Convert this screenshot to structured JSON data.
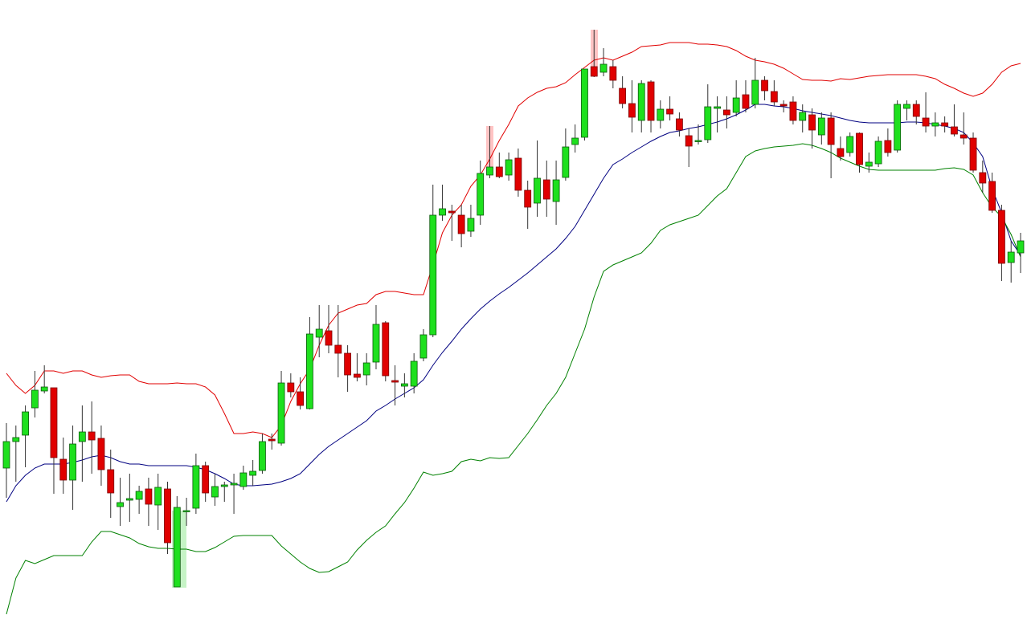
{
  "chart_data": {
    "type": "candlestick",
    "ylim": [
      0,
      771
    ],
    "up_color": "#1ee01e",
    "down_color": "#e00000",
    "open": [
      188,
      221,
      229,
      263,
      284,
      288,
      199,
      173,
      221,
      233,
      225,
      186,
      140,
      148,
      149,
      162,
      142,
      162,
      40,
      134,
      138,
      191,
      152,
      165,
      167,
      165,
      179,
      185,
      224,
      219,
      294,
      283,
      262,
      351,
      359,
      341,
      331,
      305,
      304,
      320,
      369,
      297,
      290,
      290,
      325,
      354,
      503,
      508,
      503,
      483,
      503,
      553,
      563,
      553,
      574,
      534,
      518,
      547,
      520,
      550,
      591,
      600,
      688,
      681,
      688,
      661,
      642,
      621,
      669,
      621,
      635,
      623,
      602,
      595,
      597,
      636,
      634,
      631,
      653,
      641,
      671,
      657,
      641,
      644,
      621,
      628,
      603,
      624,
      586,
      581,
      605,
      564,
      567,
      596,
      584,
      636,
      641,
      624,
      614,
      618,
      613,
      603,
      599,
      556,
      545,
      509,
      444,
      456
    ],
    "high": [
      244,
      241,
      266,
      309,
      316,
      288,
      226,
      241,
      266,
      271,
      241,
      211,
      176,
      181,
      166,
      176,
      181,
      171,
      153,
      151,
      206,
      196,
      181,
      171,
      181,
      191,
      198,
      231,
      231,
      309,
      306,
      301,
      376,
      391,
      391,
      391,
      341,
      331,
      331,
      391,
      371,
      316,
      306,
      331,
      361,
      541,
      541,
      516,
      516,
      516,
      571,
      614,
      581,
      581,
      586,
      546,
      596,
      571,
      571,
      611,
      616,
      685,
      734,
      711,
      696,
      676,
      671,
      671,
      671,
      646,
      651,
      631,
      611,
      616,
      666,
      651,
      651,
      671,
      671,
      699,
      676,
      671,
      646,
      651,
      641,
      636,
      631,
      631,
      601,
      606,
      606,
      581,
      601,
      611,
      646,
      646,
      646,
      656,
      631,
      626,
      641,
      631,
      606,
      571,
      556,
      516,
      471,
      481
    ],
    "low": [
      151,
      171,
      189,
      251,
      281,
      156,
      156,
      136,
      171,
      181,
      166,
      126,
      116,
      121,
      131,
      116,
      111,
      81,
      40,
      116,
      131,
      146,
      141,
      146,
      131,
      161,
      166,
      181,
      211,
      216,
      276,
      261,
      261,
      326,
      331,
      301,
      283,
      296,
      291,
      311,
      296,
      266,
      276,
      281,
      321,
      351,
      496,
      471,
      463,
      476,
      491,
      549,
      549,
      546,
      526,
      486,
      501,
      501,
      491,
      546,
      581,
      596,
      675,
      676,
      661,
      636,
      606,
      606,
      606,
      611,
      621,
      601,
      563,
      591,
      593,
      606,
      611,
      626,
      631,
      636,
      646,
      639,
      631,
      616,
      606,
      586,
      591,
      549,
      571,
      576,
      556,
      556,
      563,
      576,
      581,
      621,
      616,
      606,
      601,
      606,
      601,
      591,
      556,
      531,
      506,
      421,
      419,
      431
    ],
    "close": [
      221,
      226,
      258,
      285,
      289,
      201,
      173,
      218,
      233,
      223,
      186,
      157,
      145,
      150,
      159,
      143,
      164,
      95,
      139,
      135,
      191,
      157,
      165,
      167,
      169,
      182,
      184,
      221,
      222,
      294,
      283,
      266,
      355,
      361,
      341,
      331,
      304,
      301,
      319,
      367,
      303,
      295,
      293,
      321,
      354,
      503,
      511,
      506,
      480,
      499,
      555,
      563,
      551,
      572,
      534,
      513,
      549,
      523,
      547,
      588,
      599,
      685,
      676,
      691,
      671,
      642,
      625,
      667,
      621,
      635,
      629,
      609,
      589,
      596,
      638,
      638,
      628,
      649,
      636,
      671,
      658,
      644,
      639,
      621,
      631,
      609,
      624,
      591,
      576,
      601,
      566,
      569,
      595,
      581,
      641,
      641,
      626,
      614,
      618,
      614,
      604,
      599,
      559,
      543,
      509,
      443,
      457,
      471
    ],
    "lines": [
      {
        "color": "#e00000",
        "values": [
          306,
          291,
          281,
          291,
          309,
          309,
          306,
          309,
          309,
          304,
          301,
          303,
          304,
          304,
          296,
          293,
          293,
          293,
          294,
          293,
          293,
          289,
          279,
          256,
          231,
          231,
          233,
          231,
          226,
          241,
          271,
          293,
          311,
          341,
          366,
          381,
          386,
          391,
          393,
          404,
          408,
          408,
          406,
          404,
          404,
          441,
          481,
          503,
          516,
          539,
          553,
          573,
          596,
          616,
          639,
          649,
          656,
          661,
          663,
          668,
          678,
          687,
          696,
          699,
          696,
          701,
          706,
          713,
          714,
          715,
          718,
          718,
          718,
          716,
          716,
          715,
          713,
          708,
          701,
          696,
          694,
          691,
          686,
          679,
          672,
          671,
          671,
          670,
          673,
          672,
          674,
          676,
          677,
          678,
          678,
          678,
          678,
          676,
          673,
          666,
          661,
          655,
          651,
          655,
          666,
          681,
          689,
          692
        ]
      },
      {
        "color": "#000080",
        "values": [
          146,
          166,
          179,
          188,
          193,
          193,
          193,
          195,
          198,
          202,
          204,
          201,
          196,
          193,
          193,
          191,
          191,
          191,
          191,
          191,
          189,
          186,
          181,
          175,
          168,
          166,
          166,
          167,
          168,
          171,
          175,
          181,
          193,
          205,
          215,
          223,
          231,
          239,
          247,
          259,
          266,
          274,
          281,
          288,
          298,
          316,
          332,
          346,
          361,
          374,
          386,
          396,
          405,
          413,
          422,
          431,
          441,
          451,
          461,
          474,
          489,
          509,
          529,
          549,
          566,
          573,
          581,
          588,
          595,
          601,
          606,
          608,
          611,
          613,
          616,
          619,
          623,
          628,
          634,
          641,
          641,
          639,
          638,
          636,
          633,
          631,
          629,
          627,
          624,
          621,
          619,
          618,
          618,
          618,
          618,
          619,
          619,
          618,
          616,
          614,
          611,
          606,
          593,
          576,
          536,
          506,
          471,
          453
        ]
      },
      {
        "color": "#008000",
        "values": [
          6,
          51,
          73,
          69,
          74,
          79,
          79,
          79,
          79,
          96,
          109,
          109,
          105,
          101,
          94,
          90,
          88,
          88,
          87,
          87,
          84,
          84,
          89,
          96,
          103,
          104,
          104,
          104,
          104,
          91,
          81,
          71,
          63,
          58,
          59,
          65,
          71,
          86,
          98,
          108,
          116,
          131,
          145,
          163,
          183,
          179,
          181,
          184,
          196,
          199,
          197,
          201,
          200,
          201,
          216,
          231,
          248,
          266,
          281,
          301,
          331,
          361,
          401,
          433,
          441,
          446,
          451,
          456,
          468,
          484,
          491,
          495,
          499,
          503,
          515,
          527,
          536,
          556,
          576,
          583,
          586,
          588,
          589,
          590,
          592,
          590,
          586,
          581,
          574,
          569,
          564,
          560,
          559,
          559,
          559,
          559,
          559,
          559,
          559,
          561,
          562,
          560,
          553,
          531,
          513,
          501,
          479,
          451
        ]
      }
    ]
  }
}
